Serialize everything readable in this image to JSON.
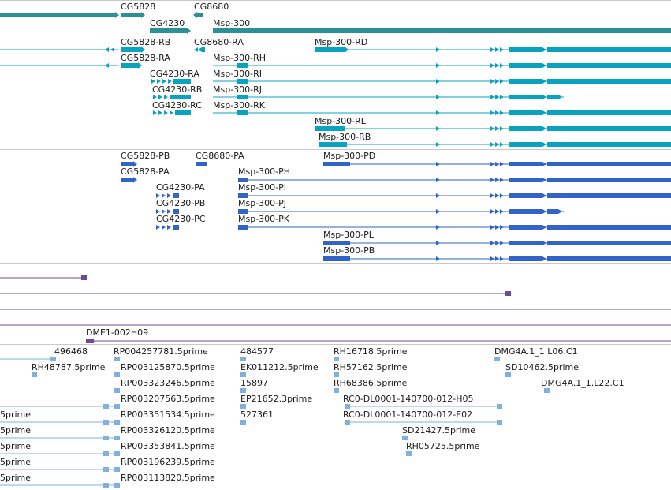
{
  "colors": {
    "gene": "#2e8f95",
    "transcript": "#0aa3bf",
    "protein": "#3163c9",
    "clone": "#6b4c9a",
    "est": "#7fb1de"
  },
  "genes": [
    {
      "name": "CG5828",
      "label": "CG5828"
    },
    {
      "name": "CG8680",
      "label": "CG8680"
    },
    {
      "name": "CG4230",
      "label": "CG4230"
    },
    {
      "name": "Msp-300",
      "label": "Msp-300"
    }
  ],
  "transcripts": [
    "CG5828-RB",
    "CG8680-RA",
    "Msp-300-RD",
    "CG5828-RA",
    "Msp-300-RH",
    "CG4230-RA",
    "Msp-300-RI",
    "CG4230-RB",
    "Msp-300-RJ",
    "CG4230-RC",
    "Msp-300-RK",
    "Msp-300-RL",
    "Msp-300-RB"
  ],
  "proteins": [
    "CG5828-PB",
    "CG8680-PA",
    "Msp-300-PD",
    "CG5828-PA",
    "Msp-300-PH",
    "CG4230-PA",
    "Msp-300-PI",
    "CG4230-PB",
    "Msp-300-PJ",
    "CG4230-PC",
    "Msp-300-PK",
    "Msp-300-PL",
    "Msp-300-PB"
  ],
  "clones": [
    "DME1-002H09"
  ],
  "ests": [
    "496468",
    "RP004257781.5prime",
    "484577",
    "RH16718.5prime",
    "DMG4A.1_1.L06.C1",
    "RH48787.5prime",
    "RP003125870.5prime",
    "EK011212.5prime",
    "RH57162.5prime",
    "SD10462.5prime",
    "RP003323246.5prime",
    "15897",
    "RH68386.5prime",
    "DMG4A.1_1.L22.C1",
    "RP003207563.5prime",
    "EP21652.3prime",
    "RC0-DL0001-140700-012-H05",
    "5prime",
    "RP003351534.5prime",
    "527361",
    "RC0-DL0001-140700-012-E02",
    "5prime",
    "RP003326120.5prime",
    "SD21427.5prime",
    "5prime",
    "RP003353841.5prime",
    "RH05725.5prime",
    "5prime",
    "RP003196239.5prime",
    "5prime",
    "RP003113820.5prime"
  ]
}
